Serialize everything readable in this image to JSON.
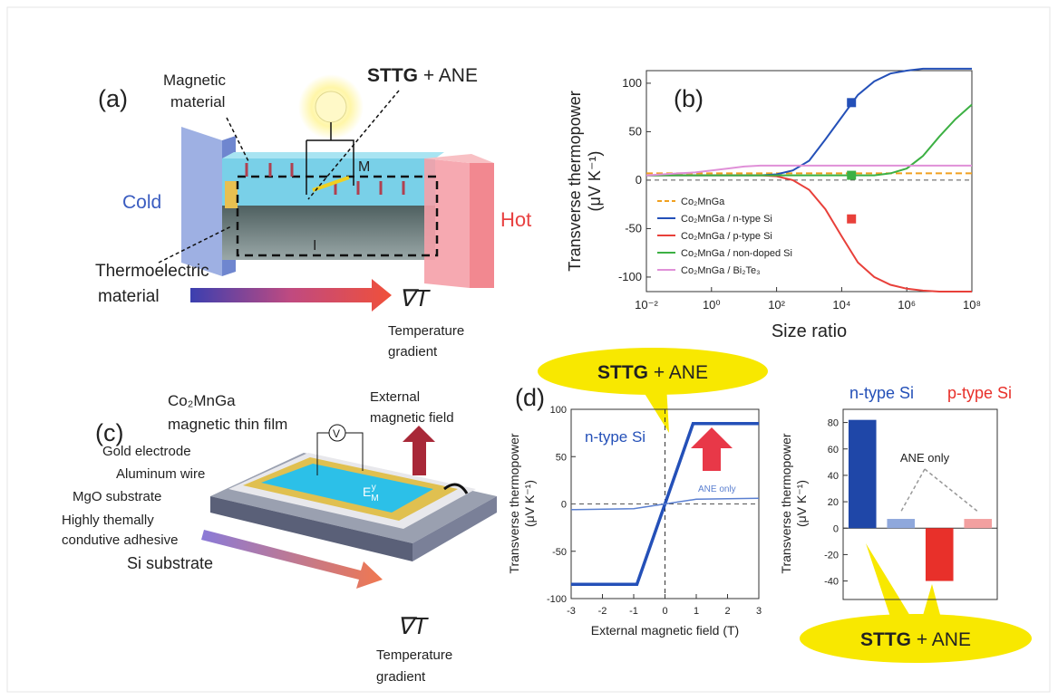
{
  "panels": {
    "a": {
      "label": "(a)",
      "magnetic_material": [
        "Magnetic",
        "material"
      ],
      "effect": {
        "bold": "STTG",
        "rest": " + ANE"
      },
      "cold": "Cold",
      "hot": "Hot",
      "magnetization": "M",
      "current": "I",
      "thermoelectric_material": [
        "Thermoelectric",
        "material"
      ],
      "gradient_symbol": "∇T",
      "gradient_label": [
        "Temperature",
        "gradient"
      ]
    },
    "c": {
      "label": "(c)",
      "film": [
        "Co₂MnGa",
        "magnetic thin film"
      ],
      "field": [
        "External",
        "magnetic field"
      ],
      "gold": "Gold electrode",
      "wire": "Aluminum wire",
      "mgo": "MgO substrate",
      "adhesive": [
        "Highly themally",
        "condutive adhesive"
      ],
      "si": "Si substrate",
      "voltmeter": "V",
      "field_symbol": {
        "base": "E",
        "sub": "M",
        "sup": "y"
      },
      "gradient_symbol": "∇T",
      "gradient_label": [
        "Temperature",
        "gradient"
      ]
    },
    "d": {
      "callouts": [
        {
          "bold": "STTG",
          "rest": " + ANE"
        },
        {
          "bold": "STTG",
          "rest": " + ANE"
        }
      ]
    }
  },
  "chart_data": [
    {
      "type": "line",
      "label": "(b)",
      "xlabel": "Size ratio",
      "ylabel": [
        "Transverse thermopower",
        "(μV K⁻¹)"
      ],
      "xlog": true,
      "xlim": [
        0.01,
        100000000
      ],
      "xticks": [
        {
          "value": 0.01,
          "label": "10⁻²"
        },
        {
          "value": 1,
          "label": "10⁰"
        },
        {
          "value": 100,
          "label": "10²"
        },
        {
          "value": 10000,
          "label": "10⁴"
        },
        {
          "value": 1000000,
          "label": "10⁶"
        },
        {
          "value": 100000000,
          "label": "10⁸"
        }
      ],
      "ylim": [
        -115,
        113
      ],
      "yticks": [
        -100,
        -50,
        0,
        50,
        100
      ],
      "zero_line": true,
      "legend": "lower left",
      "x": [
        0.01,
        0.03162,
        0.1,
        0.3162,
        1,
        3.162,
        10,
        31.62,
        100,
        316.2,
        1000,
        3162,
        10000,
        31620,
        100000,
        316200,
        1000000,
        3162000,
        10000000,
        31620000,
        100000000
      ],
      "series": [
        {
          "name": "Co₂MnGa",
          "color": "#f0a020",
          "dash": true,
          "values": [
            7,
            7,
            7,
            7,
            7,
            7,
            7,
            7,
            7,
            7,
            7,
            7,
            7,
            7,
            7,
            7,
            7,
            7,
            7,
            7,
            7
          ]
        },
        {
          "name": "Co₂MnGa / n-type Si",
          "color": "#2450b8",
          "values": [
            5,
            5,
            5,
            5,
            5,
            5,
            5,
            5,
            6,
            10,
            20,
            42,
            65,
            88,
            102,
            110,
            113,
            115,
            115,
            115,
            115
          ],
          "markers": {
            "x": [
              20000
            ],
            "values": [
              80
            ]
          }
        },
        {
          "name": "Co₂MnGa / p-type Si",
          "color": "#e8403a",
          "values": [
            5,
            5,
            5,
            5,
            5,
            5,
            5,
            5,
            4,
            0,
            -10,
            -30,
            -58,
            -85,
            -100,
            -108,
            -112,
            -114,
            -115,
            -115,
            -115
          ],
          "markers": {
            "x": [
              20000
            ],
            "values": [
              -40
            ]
          }
        },
        {
          "name": "Co₂MnGa / non-doped Si",
          "color": "#3cb043",
          "values": [
            5,
            5,
            5,
            5,
            5,
            5,
            5,
            5,
            5,
            5,
            5,
            5,
            5,
            5,
            5,
            7,
            12,
            25,
            45,
            63,
            78
          ],
          "markers": {
            "x": [
              20000
            ],
            "values": [
              5
            ]
          }
        },
        {
          "name": "Co₂MnGa / Bi₂Te₃",
          "color": "#e090d8",
          "values": [
            5,
            6,
            7,
            8,
            10,
            12,
            14,
            15,
            15,
            15,
            15,
            15,
            15,
            15,
            15,
            15,
            15,
            15,
            15,
            15,
            15
          ]
        }
      ]
    },
    {
      "type": "line",
      "label": "(d)",
      "xlabel": "External magnetic field (T)",
      "ylabel": [
        "Transverse thermopower",
        "(μV K⁻¹)"
      ],
      "xlim": [
        -3,
        3
      ],
      "xticks": [
        -3,
        -2,
        -1,
        0,
        1,
        2,
        3
      ],
      "ylim": [
        -100,
        100
      ],
      "yticks": [
        -100,
        -50,
        0,
        50,
        100
      ],
      "zero_line": true,
      "series": [
        {
          "name": "n-type Si",
          "color": "#2450b8",
          "style": "thick",
          "x": [
            -3,
            -0.9,
            0.9,
            3
          ],
          "values": [
            -85,
            -85,
            85,
            85
          ]
        },
        {
          "name": "ANE only",
          "color": "#5a7fd0",
          "style": "thin",
          "x": [
            -3,
            -1,
            0,
            1,
            3
          ],
          "values": [
            -6,
            -5,
            0,
            5,
            6
          ]
        }
      ]
    },
    {
      "type": "bar",
      "ylabel": [
        "Transverse thermopower",
        "(μV K⁻¹)"
      ],
      "categories": [
        null,
        null,
        null,
        null
      ],
      "values": [
        82,
        7,
        -40,
        7
      ],
      "colors": [
        "#1f47a8",
        "#8fa8dc",
        "#e8302a",
        "#f2a0a0"
      ],
      "ylim": [
        -54,
        90
      ],
      "yticks": [
        -40,
        -20,
        0,
        20,
        40,
        60,
        80
      ],
      "groups": [
        {
          "name": "n-type Si",
          "color": "#2450b8"
        },
        {
          "name": "p-type Si",
          "color": "#e8302a"
        }
      ],
      "annotation": "ANE only"
    }
  ]
}
